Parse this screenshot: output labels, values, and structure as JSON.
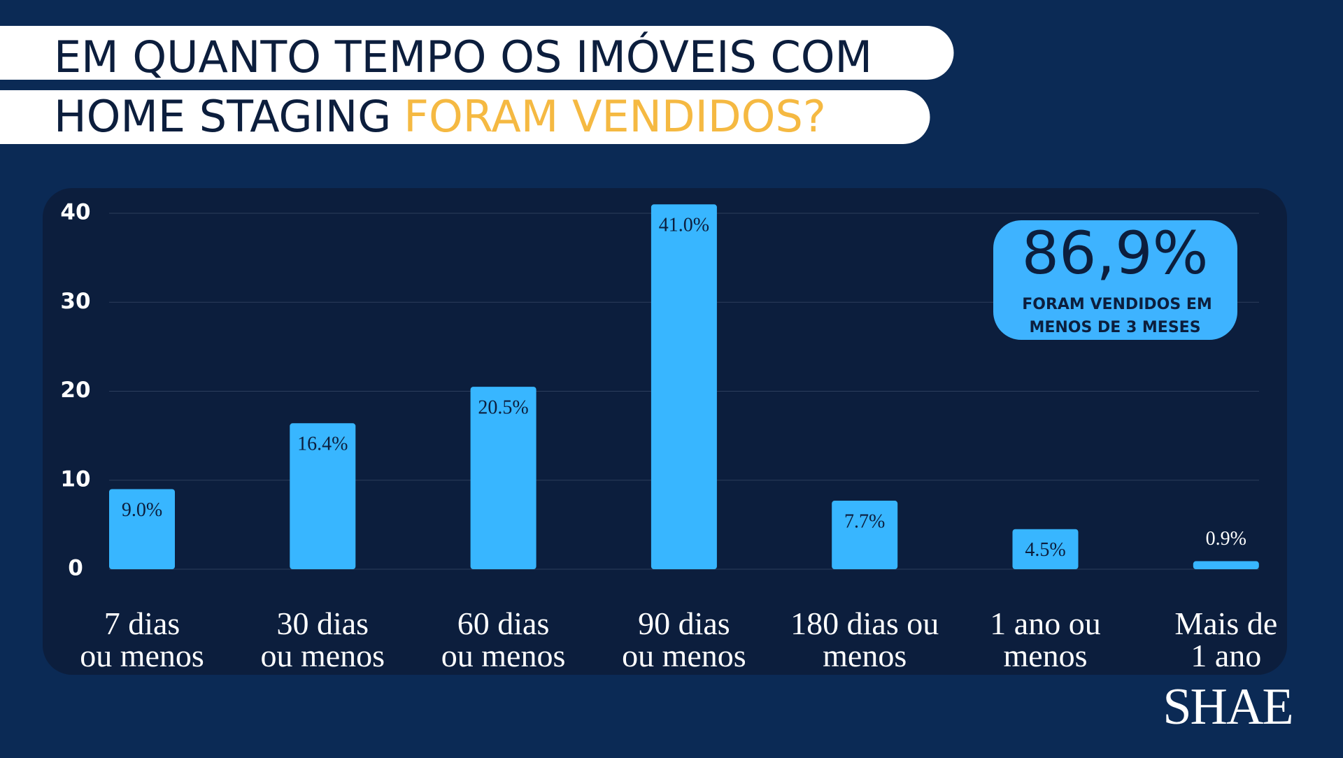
{
  "header": {
    "title_line1": "EM QUANTO TEMPO OS IMÓVEIS COM",
    "title_line2": "HOME STAGING",
    "title_highlight": "FORAM VENDIDOS?"
  },
  "chart_data": {
    "type": "bar",
    "categories": [
      "7 dias\nou menos",
      "30 dias\nou menos",
      "60 dias\nou menos",
      "90 dias\nou menos",
      "180 dias ou\nmenos",
      "1 ano ou\nmenos",
      "Mais de\n1 ano"
    ],
    "values": [
      9.0,
      16.4,
      20.5,
      41.0,
      7.7,
      4.5,
      0.9
    ],
    "value_labels": [
      "9.0%",
      "16.4%",
      "20.5%",
      "41.0%",
      "7.7%",
      "4.5%",
      "0.9%"
    ],
    "color": "#38b6ff",
    "ylim": [
      0,
      40
    ],
    "yticks": [
      0,
      10,
      20,
      30,
      40
    ],
    "grid": true
  },
  "callout": {
    "value": "86,9%",
    "text_line1": "FORAM VENDIDOS EM",
    "text_line2": "MENOS DE 3 MESES"
  },
  "logo": "SHAE"
}
